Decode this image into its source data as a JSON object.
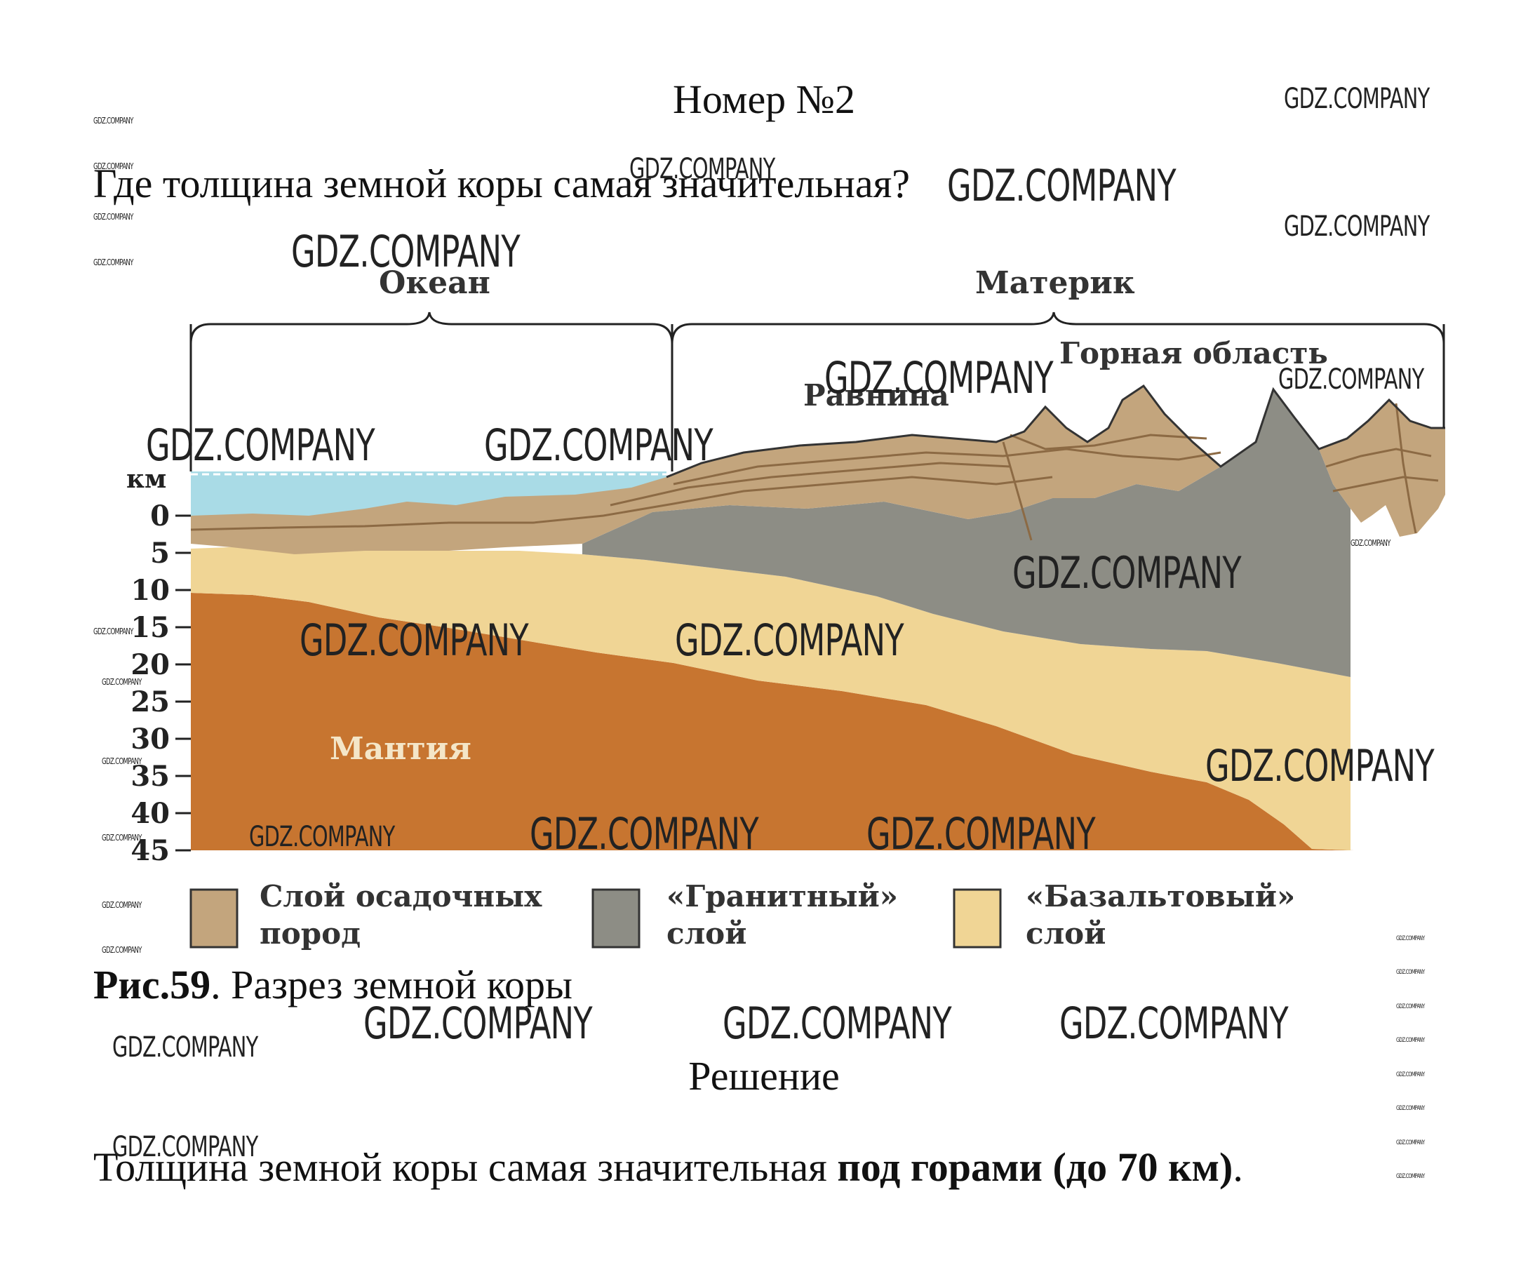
{
  "title": "Номер №2",
  "question": "Где толщина земной коры самая значительная?",
  "figure": {
    "ocean_label": "Океан",
    "continent_label": "Материк",
    "mountain_label": "Горная область",
    "plain_label": "Равнина",
    "mantle_label": "Мантия",
    "axis_unit": "км",
    "depth_ticks": [
      "0",
      "5",
      "10",
      "15",
      "20",
      "25",
      "30",
      "35",
      "40",
      "45"
    ],
    "legend": [
      {
        "line1": "Слой осадочных",
        "line2": "пород",
        "color": "#c3a57d"
      },
      {
        "line1": "«Гранитный»",
        "line2": "слой",
        "color": "#8d8d85"
      },
      {
        "line1": "«Базальтовый»",
        "line2": "слой",
        "color": "#f0d595"
      }
    ],
    "colors": {
      "water": "#a9dbe6",
      "sediment": "#c3a57d",
      "granite": "#8d8d85",
      "basalt": "#f0d595",
      "mantle": "#c77530"
    }
  },
  "caption": {
    "bold": "Рис.59",
    "rest": ". Разрез земной коры"
  },
  "solution_title": "Решение",
  "answer": {
    "text": "Толщина земной коры самая значительная ",
    "bold": "под горами (до 70 км)",
    "end": "."
  },
  "watermark": "GDZ.COMPANY"
}
